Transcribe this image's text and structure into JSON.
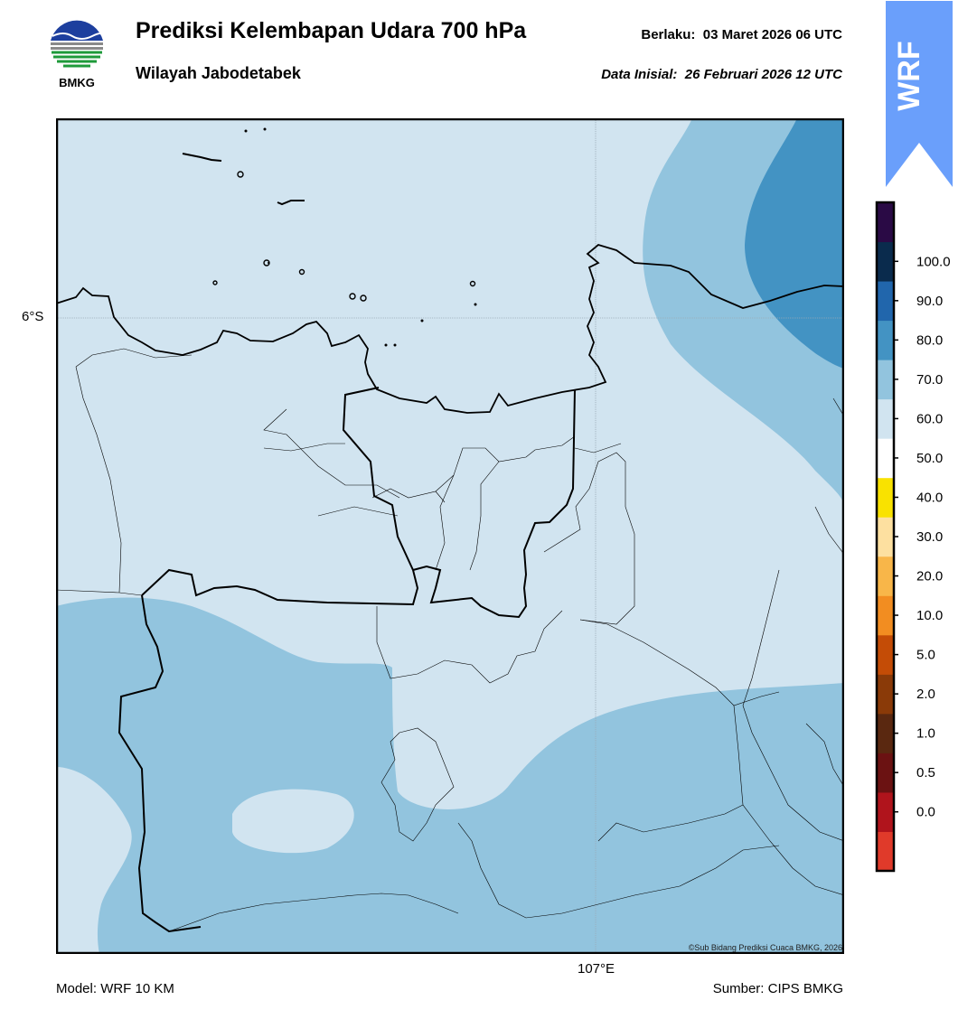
{
  "header": {
    "logo_text": "BMKG",
    "title": "Prediksi Kelembapan Udara 700 hPa",
    "subtitle": "Wilayah Jabodetabek",
    "valid_label": "Berlaku:",
    "valid_time": "03 Maret 2026 06 UTC",
    "init_label": "Data Inisial:",
    "init_time": "26 Februari 2026 12 UTC",
    "badge_text": "WRF"
  },
  "map": {
    "lat_label": "6°S",
    "lon_label": "107°E",
    "copyright": "©Sub Bidang Prediksi Cuaca BMKG, 2026",
    "fill_colors": {
      "50-60": "#d1e4f0",
      "60-70": "#92c4de",
      "70-80": "#4393c3"
    }
  },
  "colorbar": {
    "ticks": [
      "0.0",
      "0.5",
      "1.0",
      "2.0",
      "5.0",
      "10.0",
      "20.0",
      "30.0",
      "40.0",
      "50.0",
      "60.0",
      "70.0",
      "80.0",
      "90.0",
      "100.0"
    ],
    "colors": [
      "#e03a2a",
      "#b0141c",
      "#6b1212",
      "#5a2810",
      "#8a3a08",
      "#c44c06",
      "#f28d21",
      "#f8b649",
      "#fde0a0",
      "#f9e200",
      "#ffffff",
      "#d1e4f0",
      "#92c4de",
      "#4393c3",
      "#2166ac",
      "#0a2b4d",
      "#2a0a45"
    ]
  },
  "footer": {
    "model": "Model: WRF 10 KM",
    "source": "Sumber: CIPS BMKG"
  }
}
